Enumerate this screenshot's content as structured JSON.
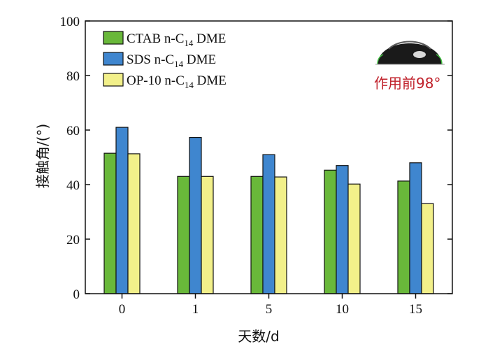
{
  "chart_data": {
    "type": "bar",
    "categories": [
      "0",
      "1",
      "5",
      "10",
      "15"
    ],
    "series": [
      {
        "name_prefix": "CTAB n-C",
        "name_sub": "14",
        "name_suffix": " DME",
        "color": "#69b83a",
        "values": [
          51.5,
          43,
          43,
          45.3,
          41.3
        ]
      },
      {
        "name_prefix": "SDS n-C",
        "name_sub": "14",
        "name_suffix": " DME",
        "color": "#3f86cf",
        "values": [
          61,
          57.3,
          51,
          47,
          48
        ]
      },
      {
        "name_prefix": "OP-10 n-C",
        "name_sub": "14",
        "name_suffix": " DME",
        "color": "#f2f08a",
        "values": [
          51.3,
          43,
          42.8,
          40.2,
          33
        ]
      }
    ],
    "xlabel": "天数/d",
    "ylabel": "接触角/(°)",
    "ylim": [
      0,
      100
    ],
    "yticks": [
      0,
      20,
      40,
      60,
      80,
      100
    ],
    "grid": false,
    "legend_position": "top-left",
    "annotation": "作用前98°"
  }
}
